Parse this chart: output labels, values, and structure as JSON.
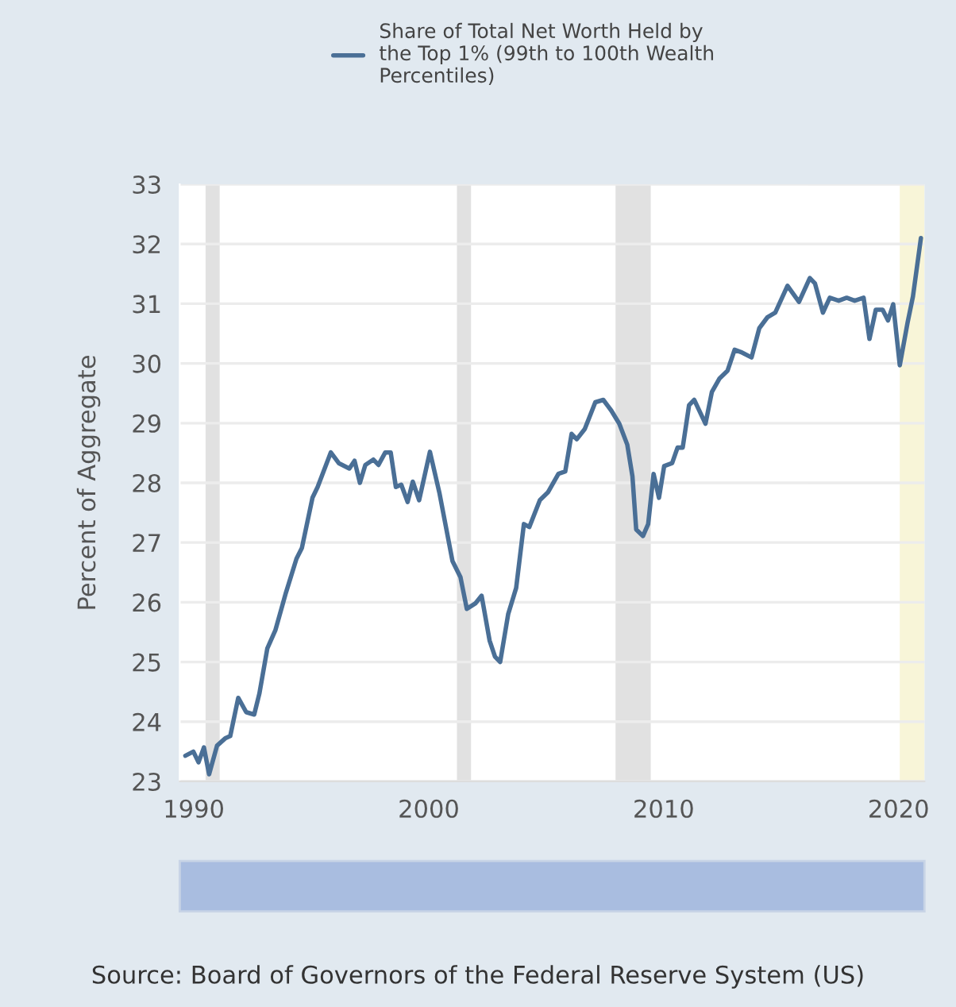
{
  "chart_data": {
    "type": "line",
    "ylabel": "Percent of Aggregate",
    "series": [
      {
        "name": "Share of Total Net Worth Held by the Top 1% (99th to 100th Wealth Percentiles)",
        "color": "#4a6f96",
        "x": [
          1989.64,
          1989.98,
          1990.2,
          1990.43,
          1990.65,
          1990.99,
          1991.33,
          1991.55,
          1991.89,
          1992.23,
          1992.57,
          1992.79,
          1993.13,
          1993.47,
          1993.92,
          1994.37,
          1994.6,
          1995.05,
          1995.27,
          1995.83,
          1996.17,
          1996.62,
          1996.84,
          1997.07,
          1997.3,
          1997.64,
          1997.86,
          1998.15,
          1998.38,
          1998.6,
          1998.83,
          1999.1,
          1999.32,
          1999.59,
          2000.05,
          2000.45,
          2001.01,
          2001.35,
          2001.62,
          2001.98,
          2002.25,
          2002.59,
          2002.82,
          2003.04,
          2003.38,
          2003.72,
          2004.05,
          2004.28,
          2004.73,
          2005.07,
          2005.52,
          2005.81,
          2006.08,
          2006.3,
          2006.64,
          2007.09,
          2007.43,
          2007.77,
          2008.11,
          2008.45,
          2008.67,
          2008.83,
          2009.12,
          2009.34,
          2009.57,
          2009.8,
          2010.02,
          2010.36,
          2010.59,
          2010.81,
          2011.08,
          2011.3,
          2011.78,
          2012.05,
          2012.38,
          2012.72,
          2013.02,
          2013.29,
          2013.74,
          2014.07,
          2014.41,
          2014.75,
          2015.27,
          2015.76,
          2016.22,
          2016.44,
          2016.78,
          2017.07,
          2017.45,
          2017.79,
          2018.13,
          2018.51,
          2018.76,
          2019.03,
          2019.32,
          2019.55,
          2019.77,
          2020.05,
          2020.38,
          2020.61,
          2020.95
        ],
        "values": [
          23.43,
          23.5,
          23.32,
          23.57,
          23.12,
          23.6,
          23.72,
          23.76,
          24.4,
          24.16,
          24.12,
          24.47,
          25.23,
          25.53,
          26.16,
          26.73,
          26.91,
          27.75,
          27.93,
          28.51,
          28.33,
          28.24,
          28.37,
          28.0,
          28.3,
          28.39,
          28.3,
          28.51,
          28.51,
          27.93,
          27.97,
          27.68,
          28.02,
          27.71,
          28.52,
          27.84,
          26.69,
          26.42,
          25.89,
          25.98,
          26.11,
          25.36,
          25.09,
          25.0,
          25.8,
          26.24,
          27.31,
          27.26,
          27.71,
          27.84,
          28.15,
          28.19,
          28.82,
          28.73,
          28.9,
          29.35,
          29.39,
          29.21,
          28.99,
          28.64,
          28.11,
          27.22,
          27.11,
          27.31,
          28.15,
          27.75,
          28.28,
          28.33,
          28.59,
          28.59,
          29.3,
          29.39,
          28.99,
          29.52,
          29.75,
          29.88,
          30.23,
          30.19,
          30.1,
          30.59,
          30.77,
          30.85,
          31.3,
          31.03,
          31.43,
          31.34,
          30.85,
          31.1,
          31.05,
          31.1,
          31.05,
          31.1,
          30.41,
          30.9,
          30.9,
          30.72,
          30.99,
          29.97,
          30.68,
          31.12,
          32.1
        ]
      }
    ],
    "xlim": [
      1989.4,
      2021.1
    ],
    "xticks": [
      1990,
      2000,
      2010,
      2020
    ],
    "ylim": [
      23,
      33
    ],
    "yticks": [
      23,
      24,
      25,
      26,
      27,
      28,
      29,
      30,
      31,
      32,
      33
    ],
    "bands": [
      {
        "axis": "x",
        "from": 1990.5,
        "to": 1991.1,
        "color": "#e1e1e1"
      },
      {
        "axis": "x",
        "from": 2001.2,
        "to": 2001.8,
        "color": "#e1e1e1"
      },
      {
        "axis": "x",
        "from": 2007.95,
        "to": 2009.45,
        "color": "#e1e1e1"
      },
      {
        "axis": "x",
        "from": 2020.05,
        "to": 2021.1,
        "color": "#f8f5d8"
      }
    ],
    "grid": "y",
    "legend": "top left",
    "marker": "none",
    "line_style": "solid",
    "annotations": [
      "Source: Board of Governors of the Federal Reserve System (US)"
    ]
  }
}
